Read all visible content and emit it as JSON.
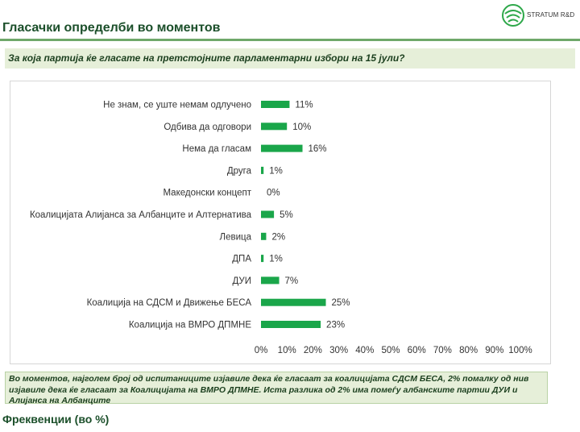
{
  "header": {
    "title": "Гласачки определби во моментов",
    "logo_text": "STRATUM R&D"
  },
  "question": "За која партија ќе гласате на претстојните парламентарни избори на 15 јули?",
  "note": "Во моментов, најголем број од испитаниците изјавиле дека ќе гласаат за коалицијата СДСМ БЕСА, 2% помалку од нив изјавиле дека ќе гласаат за Коалицијата на ВМРО ДПМНЕ. Иста разлика од 2% има помеѓу албанските партии ДУИ и Алијанса на Албанците",
  "footer": "Фреквенции (во %)",
  "colors": {
    "bar": "#1aa64a",
    "title": "#1b4f2a"
  },
  "chart_data": {
    "type": "bar",
    "orientation": "horizontal",
    "categories": [
      "Не знам, се уште немам одлучено",
      "Одбива да одговори",
      "Нема да гласам",
      "Друга",
      "Македонски концепт",
      "Коалицијата Алијанса за Албанците и Алтернатива",
      "Левица",
      "ДПА",
      "ДУИ",
      "Коалиција на СДСМ и Движење БЕСА",
      "Коалиција на ВМРО ДПМНЕ"
    ],
    "values": [
      11,
      10,
      16,
      1,
      0,
      5,
      2,
      1,
      7,
      25,
      23
    ],
    "data_labels": [
      "11%",
      "10%",
      "16%",
      "1%",
      "0%",
      "5%",
      "2%",
      "1%",
      "7%",
      "25%",
      "23%"
    ],
    "xlim": [
      0,
      100
    ],
    "x_ticks": [
      "0%",
      "10%",
      "20%",
      "30%",
      "40%",
      "50%",
      "60%",
      "70%",
      "80%",
      "90%",
      "100%"
    ],
    "grid": false,
    "legend": "none"
  }
}
